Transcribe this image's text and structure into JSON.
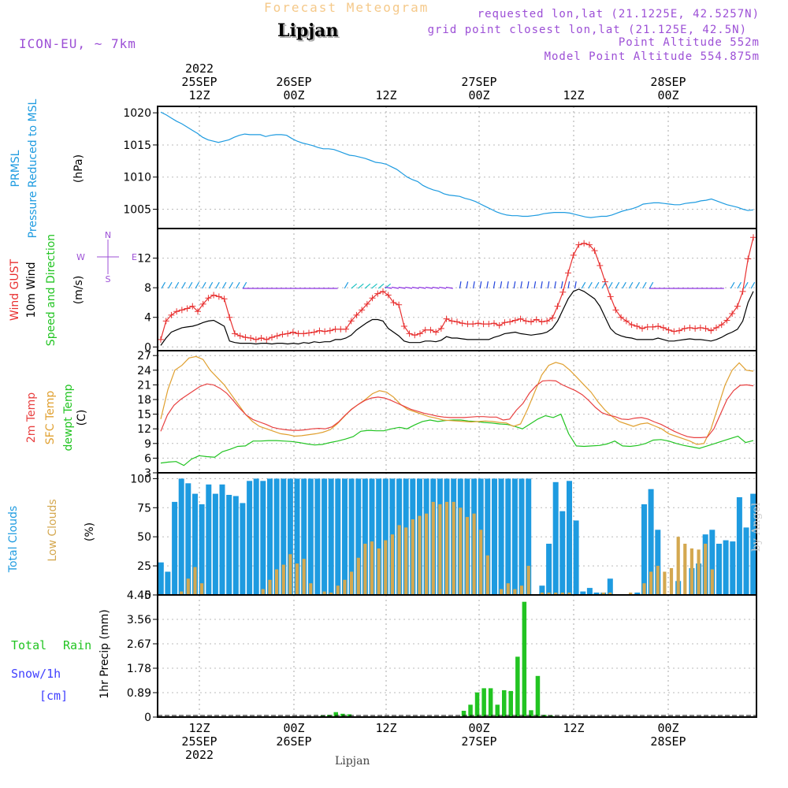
{
  "header": {
    "product": "Forecast Meteogram",
    "location": "Lipjan",
    "model": "ICON-EU, ~ 7km",
    "requested": "requested lon,lat (21.1225E, 42.5257N)",
    "grid": "grid point closest lon,lat (21.125E, 42.5N)",
    "alt": "Point Altitude 552m",
    "model_alt": "Model Point Altitude 554.875m",
    "credit": "by Angel",
    "footer": "Lipjan"
  },
  "colors": {
    "pressure": "#1e9be0",
    "gust": "#e83030",
    "wind": "#000000",
    "temp": "#e84040",
    "sfc": "#e0a030",
    "dew": "#22c422",
    "total_cloud": "#1e9be0",
    "low_cloud": "#d4a850",
    "rain": "#22c422",
    "snow": "#4040ff",
    "label_purple": "#9c4fd6"
  },
  "chart_data": [
    {
      "type": "line",
      "panel": "pressure",
      "ylabels": [
        "PRMSL",
        "Pressure Reduced to MSL",
        "(hPa)"
      ],
      "ylim": [
        1002,
        1021
      ],
      "yticks": [
        1005,
        1010,
        1015,
        1020
      ],
      "ytick_labels": [
        "1005",
        "1010",
        "1015",
        "1020"
      ],
      "series": [
        {
          "name": "PRMSL",
          "values": [
            1020.1,
            1019.7,
            1019.2,
            1018.7,
            1018.3,
            1017.8,
            1017.3,
            1016.8,
            1016.2,
            1015.8,
            1015.6,
            1015.4,
            1015.6,
            1015.8,
            1016.2,
            1016.5,
            1016.7,
            1016.6,
            1016.6,
            1016.6,
            1016.3,
            1016.5,
            1016.6,
            1016.6,
            1016.5,
            1016.0,
            1015.6,
            1015.3,
            1015.1,
            1014.9,
            1014.6,
            1014.4,
            1014.4,
            1014.3,
            1014.0,
            1013.7,
            1013.4,
            1013.3,
            1013.1,
            1012.9,
            1012.6,
            1012.3,
            1012.2,
            1012.0,
            1011.6,
            1011.2,
            1010.6,
            1010.0,
            1009.6,
            1009.3,
            1008.7,
            1008.3,
            1008.0,
            1007.8,
            1007.4,
            1007.2,
            1007.1,
            1007.0,
            1006.7,
            1006.5,
            1006.2,
            1005.8,
            1005.4,
            1005.0,
            1004.6,
            1004.3,
            1004.1,
            1004.0,
            1004.0,
            1003.9,
            1003.9,
            1004.0,
            1004.1,
            1004.3,
            1004.4,
            1004.5,
            1004.5,
            1004.5,
            1004.4,
            1004.2,
            1004.0,
            1003.8,
            1003.7,
            1003.8,
            1003.9,
            1003.9,
            1004.1,
            1004.4,
            1004.7,
            1004.9,
            1005.1,
            1005.4,
            1005.8,
            1005.9,
            1006.0,
            1006.0,
            1005.9,
            1005.8,
            1005.7,
            1005.7,
            1005.9,
            1006.0,
            1006.1,
            1006.3,
            1006.4,
            1006.6,
            1006.3,
            1006.0,
            1005.7,
            1005.5,
            1005.3,
            1005.0,
            1004.8,
            1004.9
          ]
        }
      ]
    },
    {
      "type": "line",
      "panel": "wind",
      "ylabels": [
        "Wind GUST",
        "10m Wind",
        "Speed and Direction",
        "(m/s)"
      ],
      "compass": [
        "N",
        "S",
        "W",
        "E"
      ],
      "ylim": [
        -0.5,
        16
      ],
      "yticks": [
        0,
        4,
        8,
        12
      ],
      "ytick_labels": [
        "0",
        "4",
        "8",
        "12"
      ],
      "series": [
        {
          "name": "Wind GUST",
          "values": [
            1.0,
            3.5,
            4.3,
            4.8,
            5.0,
            5.2,
            5.5,
            4.8,
            5.8,
            6.6,
            7.0,
            6.8,
            6.5,
            4.0,
            1.8,
            1.5,
            1.3,
            1.2,
            1.0,
            1.2,
            1.0,
            1.3,
            1.5,
            1.7,
            1.8,
            2.0,
            1.8,
            1.8,
            1.9,
            2.0,
            2.2,
            2.1,
            2.2,
            2.4,
            2.4,
            2.4,
            3.5,
            4.3,
            5.0,
            5.8,
            6.6,
            7.2,
            7.5,
            7.0,
            6.0,
            5.7,
            2.8,
            1.8,
            1.6,
            1.8,
            2.3,
            2.3,
            2.0,
            2.5,
            3.8,
            3.5,
            3.4,
            3.2,
            3.1,
            3.1,
            3.2,
            3.1,
            3.1,
            3.2,
            2.9,
            3.3,
            3.4,
            3.6,
            3.8,
            3.5,
            3.4,
            3.7,
            3.4,
            3.5,
            3.9,
            5.5,
            7.4,
            10.0,
            12.4,
            13.8,
            14.0,
            13.8,
            13.0,
            11.0,
            8.8,
            6.8,
            5.0,
            4.0,
            3.5,
            3.0,
            2.8,
            2.5,
            2.7,
            2.7,
            2.8,
            2.6,
            2.3,
            2.1,
            2.2,
            2.5,
            2.6,
            2.5,
            2.6,
            2.5,
            2.2,
            2.6,
            3.0,
            3.6,
            4.5,
            5.5,
            7.5,
            11.9,
            14.8
          ]
        },
        {
          "name": "10m Wind",
          "values": [
            0.2,
            1.2,
            2.0,
            2.3,
            2.6,
            2.7,
            2.8,
            3.0,
            3.3,
            3.5,
            3.6,
            3.2,
            2.8,
            0.8,
            0.6,
            0.5,
            0.5,
            0.5,
            0.4,
            0.5,
            0.5,
            0.4,
            0.5,
            0.5,
            0.4,
            0.5,
            0.4,
            0.6,
            0.5,
            0.7,
            0.6,
            0.7,
            0.7,
            1.0,
            1.0,
            1.2,
            1.6,
            2.3,
            2.8,
            3.3,
            3.7,
            3.7,
            3.5,
            2.5,
            2.0,
            1.5,
            0.8,
            0.6,
            0.6,
            0.6,
            0.8,
            0.8,
            0.7,
            0.9,
            1.4,
            1.2,
            1.2,
            1.1,
            1.0,
            1.0,
            1.0,
            1.0,
            1.0,
            1.3,
            1.5,
            1.8,
            1.9,
            2.0,
            1.8,
            1.7,
            1.6,
            1.7,
            1.8,
            2.0,
            2.5,
            3.5,
            5.0,
            6.5,
            7.5,
            7.8,
            7.5,
            7.0,
            6.5,
            5.5,
            4.0,
            2.5,
            1.8,
            1.5,
            1.3,
            1.2,
            1.0,
            1.0,
            1.0,
            1.0,
            1.2,
            1.0,
            0.8,
            0.8,
            0.9,
            1.0,
            1.1,
            1.0,
            1.0,
            0.9,
            0.8,
            1.0,
            1.3,
            1.7,
            2.0,
            2.4,
            3.5,
            6.0,
            7.5
          ]
        }
      ]
    },
    {
      "type": "line",
      "panel": "temperature",
      "ylabels": [
        "2m Temp",
        "SFC Temp",
        "dewpt Temp",
        "(C)"
      ],
      "ylim": [
        3,
        28
      ],
      "yticks": [
        3,
        6,
        9,
        12,
        15,
        18,
        21,
        24,
        27
      ],
      "ytick_labels": [
        "3",
        "6",
        "9",
        "12",
        "15",
        "18",
        "21",
        "24",
        "27"
      ],
      "series": [
        {
          "name": "2m Temp",
          "values": [
            11.5,
            14.8,
            16.8,
            18.0,
            18.9,
            19.8,
            20.7,
            21.2,
            21.0,
            20.3,
            19.3,
            17.8,
            16.2,
            14.8,
            13.9,
            13.4,
            12.9,
            12.3,
            12.0,
            11.8,
            11.7,
            11.7,
            11.8,
            12.0,
            12.1,
            12.0,
            12.4,
            13.4,
            14.8,
            16.0,
            17.0,
            17.8,
            18.3,
            18.5,
            18.3,
            17.8,
            17.2,
            16.6,
            16.0,
            15.6,
            15.2,
            14.9,
            14.6,
            14.4,
            14.3,
            14.3,
            14.3,
            14.4,
            14.5,
            14.5,
            14.4,
            14.4,
            13.8,
            14.0,
            15.8,
            17.2,
            19.3,
            20.8,
            21.8,
            21.9,
            21.8,
            21.0,
            20.4,
            19.8,
            19.0,
            17.8,
            16.4,
            15.3,
            14.8,
            14.5,
            14.0,
            13.9,
            14.2,
            14.3,
            14.0,
            13.4,
            12.9,
            12.2,
            11.5,
            10.9,
            10.4,
            10.2,
            10.2,
            10.3,
            12.0,
            15.0,
            18.0,
            19.8,
            20.9,
            21.0,
            20.8
          ]
        },
        {
          "name": "SFC Temp",
          "values": [
            14.0,
            20.0,
            24.0,
            25.0,
            26.5,
            26.8,
            26.2,
            24.0,
            22.5,
            21.0,
            19.0,
            17.0,
            15.0,
            13.5,
            12.5,
            12.0,
            11.5,
            11.0,
            10.8,
            10.5,
            10.6,
            10.8,
            11.0,
            11.3,
            11.8,
            13.0,
            14.5,
            16.0,
            17.0,
            18.0,
            19.2,
            19.8,
            19.5,
            18.5,
            17.0,
            16.0,
            15.5,
            15.0,
            14.5,
            14.2,
            13.8,
            13.7,
            13.6,
            13.5,
            13.4,
            13.5,
            13.6,
            13.5,
            13.3,
            13.2,
            12.5,
            13.0,
            16.0,
            19.5,
            23.0,
            25.0,
            25.6,
            25.2,
            24.0,
            22.5,
            21.0,
            19.5,
            17.5,
            15.8,
            14.5,
            13.5,
            13.0,
            12.5,
            13.0,
            13.2,
            12.6,
            12.0,
            11.0,
            10.5,
            10.0,
            9.5,
            8.8,
            9.0,
            12.0,
            16.5,
            21.0,
            24.0,
            25.5,
            24.0,
            23.8
          ]
        },
        {
          "name": "dewpt Temp",
          "values": [
            5.0,
            5.2,
            5.3,
            4.5,
            5.8,
            6.5,
            6.3,
            6.2,
            7.3,
            7.8,
            8.4,
            8.5,
            9.5,
            9.5,
            9.6,
            9.6,
            9.5,
            9.4,
            9.2,
            8.9,
            8.7,
            8.8,
            9.2,
            9.5,
            9.9,
            10.4,
            11.5,
            11.7,
            11.6,
            11.6,
            12.0,
            12.3,
            12.0,
            12.8,
            13.5,
            13.8,
            13.5,
            13.7,
            13.8,
            13.8,
            13.6,
            13.5,
            13.3,
            13.2,
            13.0,
            12.9,
            12.5,
            12.0,
            13.0,
            14.0,
            14.7,
            14.3,
            15.0,
            11.0,
            8.5,
            8.4,
            8.5,
            8.6,
            8.9,
            9.5,
            8.5,
            8.4,
            8.6,
            9.0,
            9.7,
            9.8,
            9.5,
            9.0,
            8.6,
            8.3,
            8.0,
            8.5,
            9.0,
            9.5,
            10.0,
            10.5,
            9.2,
            9.6
          ]
        }
      ]
    },
    {
      "type": "bar",
      "panel": "clouds",
      "ylabels": [
        "Total Clouds",
        "Low Clouds",
        "(%)"
      ],
      "ylim": [
        0,
        105
      ],
      "yticks": [
        0,
        25,
        50,
        75,
        100
      ],
      "ytick_labels": [
        "0",
        "25",
        "50",
        "75",
        "100"
      ],
      "series": [
        {
          "name": "Total Clouds",
          "values": [
            28,
            20,
            80,
            100,
            96,
            87,
            78,
            95,
            87,
            95,
            86,
            85,
            79,
            98,
            100,
            98,
            100,
            100,
            100,
            100,
            100,
            100,
            100,
            100,
            100,
            100,
            100,
            100,
            100,
            100,
            100,
            100,
            100,
            100,
            100,
            100,
            100,
            100,
            100,
            100,
            100,
            100,
            100,
            100,
            100,
            100,
            100,
            100,
            100,
            100,
            100,
            100,
            100,
            100,
            100,
            0,
            8,
            44,
            97,
            72,
            98,
            64,
            3,
            6,
            2,
            2,
            14,
            0,
            0,
            0,
            2,
            78,
            91,
            56,
            0,
            0,
            12,
            0,
            23,
            27,
            52,
            56,
            44,
            47,
            46,
            84,
            58,
            87
          ]
        },
        {
          "name": "Low Clouds",
          "values": [
            0,
            0,
            0,
            3,
            14,
            24,
            10,
            0,
            0,
            0,
            0,
            0,
            0,
            0,
            0,
            5,
            13,
            22,
            26,
            35,
            27,
            31,
            10,
            0,
            3,
            2,
            8,
            13,
            20,
            32,
            44,
            46,
            40,
            47,
            52,
            60,
            58,
            65,
            68,
            70,
            80,
            78,
            80,
            80,
            75,
            67,
            70,
            56,
            34,
            0,
            5,
            10,
            5,
            8,
            25,
            0,
            2,
            2,
            2,
            2,
            2,
            0,
            0,
            0,
            0,
            2,
            2,
            0,
            0,
            2,
            0,
            10,
            20,
            25,
            20,
            23,
            50,
            44,
            40,
            39,
            44,
            22,
            0,
            0,
            0
          ]
        }
      ]
    },
    {
      "type": "bar",
      "panel": "precip",
      "ylabels": [
        "Total",
        "Rain",
        "Snow/1h",
        "[cm]",
        "1hr Precip (mm)"
      ],
      "ylim": [
        0,
        4.45
      ],
      "yticks": [
        0,
        0.89,
        1.78,
        2.67,
        3.56,
        4.45
      ],
      "ytick_labels": [
        "0",
        "0.89",
        "1.78",
        "2.67",
        "3.56",
        "4.45"
      ],
      "series": [
        {
          "name": "Total Rain",
          "values": [
            0,
            0,
            0,
            0,
            0,
            0,
            0,
            0,
            0,
            0,
            0,
            0,
            0,
            0,
            0,
            0,
            0,
            0,
            0,
            0,
            0,
            0,
            0,
            0,
            0.05,
            0.08,
            0.18,
            0.12,
            0.1,
            0.02,
            0,
            0,
            0,
            0,
            0,
            0,
            0,
            0,
            0,
            0,
            0,
            0,
            0,
            0,
            0,
            0.23,
            0.45,
            0.9,
            1.05,
            1.05,
            0.45,
            0.98,
            0.95,
            2.2,
            4.2,
            0.25,
            1.5,
            0.08,
            0.05,
            0.02,
            0,
            0,
            0,
            0,
            0,
            0,
            0,
            0,
            0,
            0,
            0,
            0,
            0,
            0,
            0,
            0,
            0,
            0,
            0,
            0,
            0,
            0,
            0,
            0,
            0,
            0,
            0,
            0,
            0
          ]
        }
      ]
    }
  ],
  "time_axis": {
    "top": [
      [
        "2022",
        "25SEP",
        "12Z"
      ],
      [
        "26SEP",
        "00Z"
      ],
      [
        "12Z"
      ],
      [
        "27SEP",
        "00Z"
      ],
      [
        "12Z"
      ],
      [
        "28SEP",
        "00Z"
      ]
    ],
    "bottom": [
      [
        "12Z",
        "25SEP",
        "2022"
      ],
      [
        "00Z",
        "26SEP"
      ],
      [
        "12Z"
      ],
      [
        "00Z",
        "27SEP"
      ],
      [
        "12Z"
      ],
      [
        "00Z",
        "28SEP"
      ]
    ]
  }
}
